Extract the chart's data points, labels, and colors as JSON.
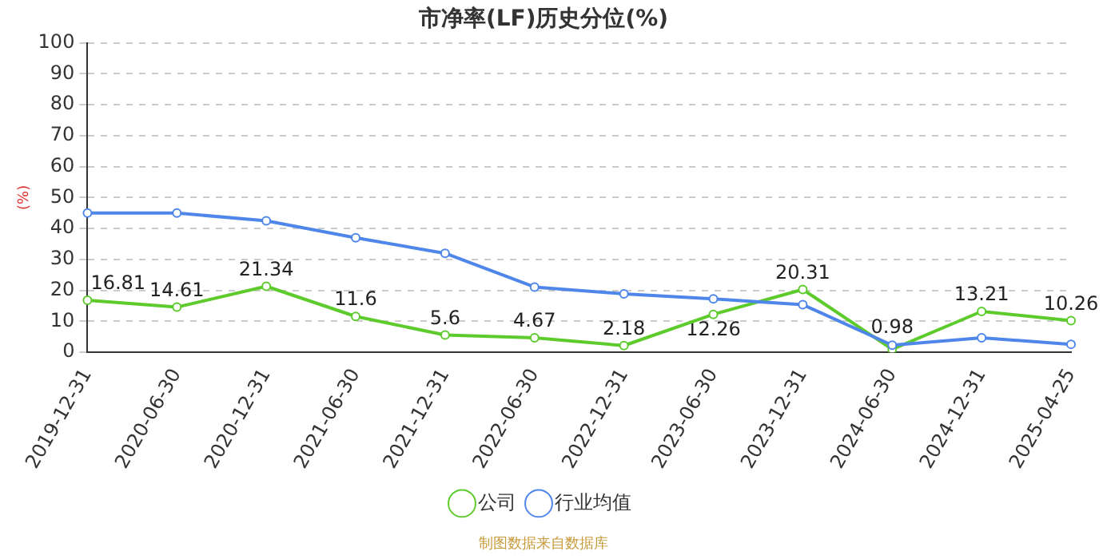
{
  "chart_data": {
    "type": "line",
    "title": "市净率(LF)历史分位(%)",
    "ylabel": "(%)",
    "categories": [
      "2019-12-31",
      "2020-06-30",
      "2020-12-31",
      "2021-06-30",
      "2021-12-31",
      "2022-06-30",
      "2022-12-31",
      "2023-06-30",
      "2023-12-31",
      "2024-06-30",
      "2024-12-31",
      "2025-04-25"
    ],
    "series": [
      {
        "name": "公司",
        "color": "#5ecb2c",
        "values": [
          16.81,
          14.61,
          21.34,
          11.6,
          5.6,
          4.67,
          2.18,
          12.26,
          20.31,
          0.98,
          13.21,
          10.26
        ],
        "value_labels": [
          "16.81",
          "14.61",
          "21.34",
          "11.6",
          "5.6",
          "4.67",
          "2.18",
          "12.26",
          "20.31",
          "0.98",
          "13.21",
          "10.26"
        ]
      },
      {
        "name": "行业均值",
        "color": "#4f86ea",
        "values": [
          45,
          45,
          42.5,
          37,
          32,
          21.1,
          18.9,
          17.3,
          15.4,
          2.3,
          4.7,
          2.6
        ]
      }
    ],
    "ylim": [
      0,
      100
    ],
    "yticks": [
      0,
      10,
      20,
      30,
      40,
      50,
      60,
      70,
      80,
      90,
      100
    ],
    "grid": "y",
    "legend": "bottom",
    "marker": "circle",
    "line_style": "solid",
    "annotations": [
      "制图数据来自数据库"
    ]
  }
}
